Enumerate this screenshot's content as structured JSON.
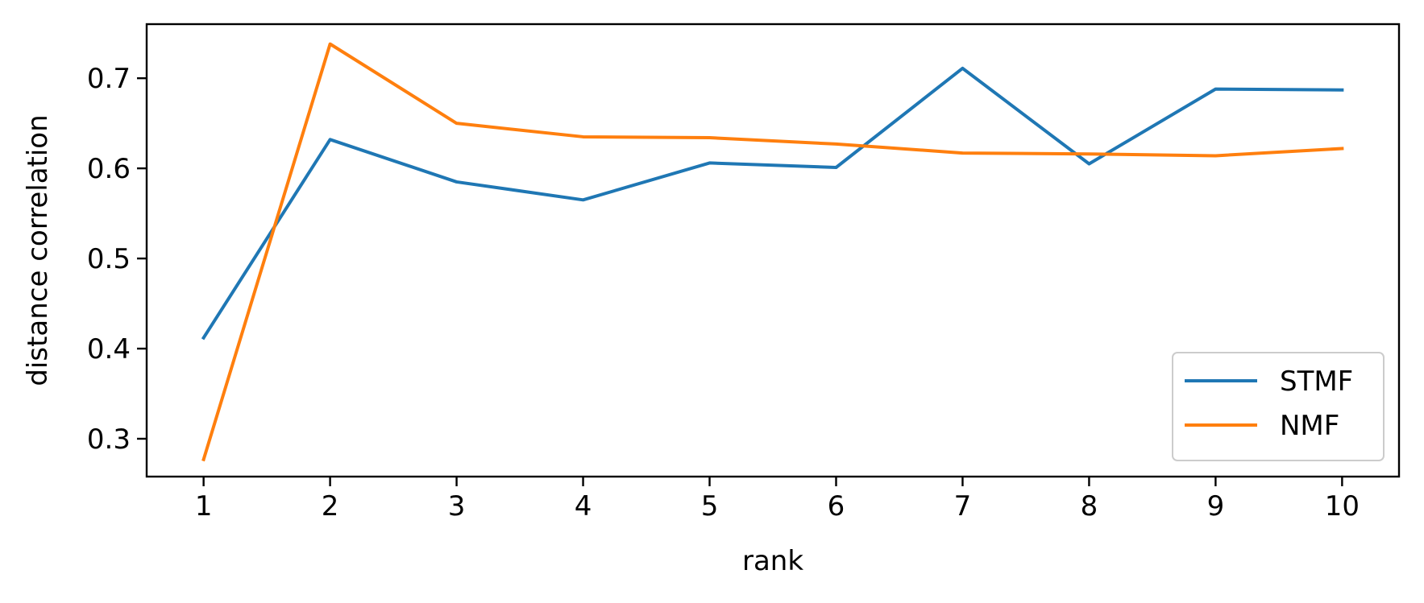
{
  "chart_data": {
    "type": "line",
    "xlabel": "rank",
    "ylabel": "distance correlation",
    "x": [
      1,
      2,
      3,
      4,
      5,
      6,
      7,
      8,
      9,
      10
    ],
    "xlim": [
      0.55,
      10.45
    ],
    "ylim": [
      0.258,
      0.76
    ],
    "xticks": [
      1,
      2,
      3,
      4,
      5,
      6,
      7,
      8,
      9,
      10
    ],
    "yticks": [
      0.3,
      0.4,
      0.5,
      0.6,
      0.7
    ],
    "grid": false,
    "legend_position": "bottom-right",
    "series": [
      {
        "name": "STMF",
        "color": "#1f77b4",
        "values": [
          0.412,
          0.632,
          0.585,
          0.565,
          0.606,
          0.601,
          0.711,
          0.605,
          0.688,
          0.687
        ]
      },
      {
        "name": "NMF",
        "color": "#ff7f0e",
        "values": [
          0.277,
          0.738,
          0.65,
          0.635,
          0.634,
          0.627,
          0.617,
          0.616,
          0.614,
          0.622
        ]
      }
    ]
  }
}
